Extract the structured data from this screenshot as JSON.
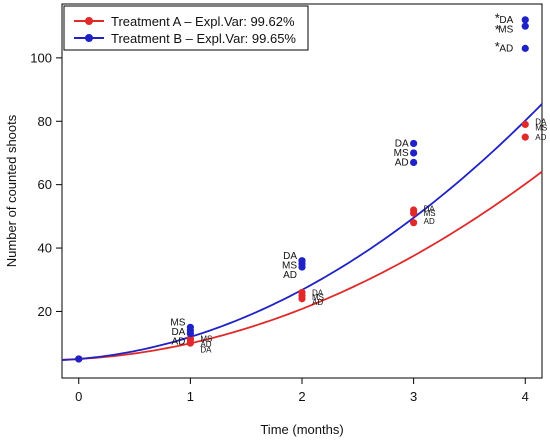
{
  "chart_data": {
    "type": "scatter",
    "xlabel": "Time (months)",
    "ylabel": "Number of counted shoots",
    "xlim": [
      -0.15,
      4.15
    ],
    "ylim": [
      -1,
      117
    ],
    "xticks": [
      0,
      1,
      2,
      3,
      4
    ],
    "yticks": [
      20,
      40,
      60,
      80,
      100
    ],
    "legend_position": "top-left",
    "grid": false,
    "series": [
      {
        "name": "Treatment A – Expl.Var: 99.62%",
        "color": "#e02a2a",
        "points": [
          {
            "x": 0,
            "y": 5
          },
          {
            "x": 1,
            "y": 10
          },
          {
            "x": 1,
            "y": 11
          },
          {
            "x": 1,
            "y": 11.5
          },
          {
            "x": 2,
            "y": 24
          },
          {
            "x": 2,
            "y": 25
          },
          {
            "x": 2,
            "y": 26
          },
          {
            "x": 3,
            "y": 48
          },
          {
            "x": 3,
            "y": 51
          },
          {
            "x": 3,
            "y": 52
          },
          {
            "x": 4,
            "y": 75
          },
          {
            "x": 4,
            "y": 79
          }
        ],
        "fit": {
          "a": 5,
          "b": 2,
          "c": 2.95
        },
        "point_labels": [
          {
            "x": 1,
            "y": 11.5,
            "text": "MS"
          },
          {
            "x": 1,
            "y": 9.8,
            "text": "AD"
          },
          {
            "x": 1,
            "y": 8,
            "text": "DA"
          },
          {
            "x": 2,
            "y": 26,
            "text": "DA"
          },
          {
            "x": 2,
            "y": 24.5,
            "text": "MS"
          },
          {
            "x": 2,
            "y": 23,
            "text": "AD"
          },
          {
            "x": 3,
            "y": 52.5,
            "text": "DA"
          },
          {
            "x": 3,
            "y": 51,
            "text": "MS"
          },
          {
            "x": 3,
            "y": 48.5,
            "text": "AD"
          },
          {
            "x": 4,
            "y": 80,
            "text": "DA"
          },
          {
            "x": 4,
            "y": 78,
            "text": "MS"
          },
          {
            "x": 4,
            "y": 75,
            "text": "AD"
          }
        ]
      },
      {
        "name": "Treatment B – Expl.Var: 99.65%",
        "color": "#1f22c4",
        "points": [
          {
            "x": 0,
            "y": 5
          },
          {
            "x": 1,
            "y": 13
          },
          {
            "x": 1,
            "y": 14
          },
          {
            "x": 1,
            "y": 15
          },
          {
            "x": 2,
            "y": 34
          },
          {
            "x": 2,
            "y": 35
          },
          {
            "x": 2,
            "y": 36
          },
          {
            "x": 3,
            "y": 67
          },
          {
            "x": 3,
            "y": 70
          },
          {
            "x": 3,
            "y": 73
          },
          {
            "x": 4,
            "y": 103
          },
          {
            "x": 4,
            "y": 110
          },
          {
            "x": 4,
            "y": 112
          }
        ],
        "fit": {
          "a": 5,
          "b": 3,
          "c": 3.95
        },
        "point_labels": [
          {
            "x": 1,
            "y": 16.5,
            "text": "MS"
          },
          {
            "x": 1,
            "y": 13.5,
            "text": "DA"
          },
          {
            "x": 1,
            "y": 10.5,
            "text": "AD"
          },
          {
            "x": 2,
            "y": 37.5,
            "text": "DA"
          },
          {
            "x": 2,
            "y": 34.5,
            "text": "MS"
          },
          {
            "x": 2,
            "y": 31.5,
            "text": "AD"
          },
          {
            "x": 3,
            "y": 73,
            "text": "DA"
          },
          {
            "x": 3,
            "y": 70,
            "text": "MS"
          },
          {
            "x": 3,
            "y": 67,
            "text": "AD"
          },
          {
            "x": 4,
            "y": 112,
            "text": "DA"
          },
          {
            "x": 4,
            "y": 109,
            "text": "MS"
          },
          {
            "x": 4,
            "y": 103,
            "text": "AD"
          }
        ],
        "asterisks": [
          {
            "x": 4,
            "y": 113
          },
          {
            "x": 4,
            "y": 109.5
          },
          {
            "x": 4,
            "y": 104
          }
        ]
      }
    ]
  }
}
